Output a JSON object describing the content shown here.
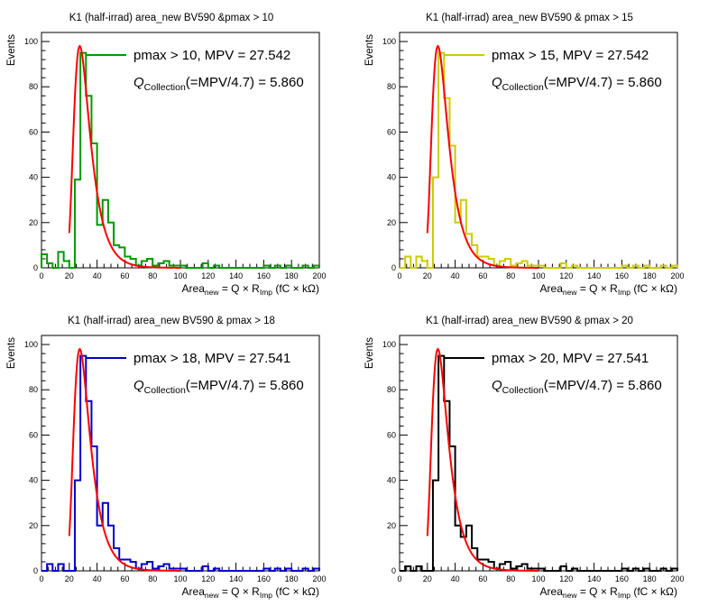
{
  "chart_data": [
    {
      "type": "histogram",
      "title": "K1 (half-irrad) area_new BV590 &pmax > 10",
      "xlabel": {
        "main": "Area",
        "sub": "new",
        "rest": " = Q × R",
        "sub2": "Imp",
        "tail": " (fC × kΩ)"
      },
      "ylabel": "Events",
      "xlim": [
        0,
        200
      ],
      "ylim": [
        0,
        104
      ],
      "xticks": [
        "0",
        "20",
        "40",
        "60",
        "80",
        "100",
        "120",
        "140",
        "160",
        "180",
        "200"
      ],
      "yticks": [
        "0",
        "20",
        "40",
        "60",
        "80",
        "100"
      ],
      "bin_width": 4,
      "legend": {
        "text": "pmax > 10, MPV = 27.542"
      },
      "annotation": {
        "q": "Q",
        "sub": "Collection",
        "rest": "(=MPV/4.7) = 5.860"
      },
      "series": [
        {
          "name": "pmax > 10",
          "color": "#009900",
          "values": [
            6,
            2,
            0,
            7,
            3,
            0,
            39,
            95,
            76,
            55,
            19,
            30,
            20,
            10,
            9,
            5,
            4,
            1,
            3,
            4,
            1,
            2,
            3,
            1,
            1,
            1,
            0,
            0,
            0,
            2,
            0,
            1,
            0,
            0,
            0,
            0,
            0,
            0,
            0,
            0,
            1,
            0,
            1,
            0,
            1,
            0,
            0,
            1,
            0,
            1
          ]
        },
        {
          "name": "Landau fit",
          "color": "#ff0000",
          "fit": true,
          "mpv": 27.542,
          "amplitude": 98,
          "x_range": [
            20,
            100
          ]
        }
      ]
    },
    {
      "type": "histogram",
      "title": "K1 (half-irrad) area_new BV590 & pmax > 15",
      "xlabel": {
        "main": "Area",
        "sub": "new",
        "rest": " = Q × R",
        "sub2": "Imp",
        "tail": " (fC × kΩ)"
      },
      "ylabel": "Events",
      "xlim": [
        0,
        200
      ],
      "ylim": [
        0,
        104
      ],
      "xticks": [
        "0",
        "20",
        "40",
        "60",
        "80",
        "100",
        "120",
        "140",
        "160",
        "180",
        "200"
      ],
      "yticks": [
        "0",
        "20",
        "40",
        "60",
        "80",
        "100"
      ],
      "bin_width": 4,
      "legend": {
        "text": "pmax > 15, MPV = 27.542"
      },
      "annotation": {
        "q": "Q",
        "sub": "Collection",
        "rest": "(=MPV/4.7) = 5.860"
      },
      "series": [
        {
          "name": "pmax > 15",
          "color": "#cccc00",
          "values": [
            0,
            5,
            0,
            5,
            3,
            0,
            40,
            95,
            75,
            54,
            20,
            30,
            15,
            10,
            5,
            5,
            4,
            1,
            3,
            4,
            1,
            2,
            3,
            1,
            1,
            1,
            0,
            0,
            0,
            2,
            0,
            1,
            0,
            0,
            0,
            0,
            0,
            0,
            0,
            0,
            1,
            0,
            1,
            0,
            1,
            0,
            0,
            1,
            0,
            1
          ]
        },
        {
          "name": "Landau fit",
          "color": "#ff0000",
          "fit": true,
          "mpv": 27.542,
          "amplitude": 98,
          "x_range": [
            20,
            100
          ]
        }
      ]
    },
    {
      "type": "histogram",
      "title": "K1 (half-irrad) area_new BV590 & pmax > 18",
      "xlabel": {
        "main": "Area",
        "sub": "new",
        "rest": " = Q × R",
        "sub2": "Imp",
        "tail": " (fC × kΩ)"
      },
      "ylabel": "Events",
      "xlim": [
        0,
        200
      ],
      "ylim": [
        0,
        104
      ],
      "xticks": [
        "0",
        "20",
        "40",
        "60",
        "80",
        "100",
        "120",
        "140",
        "160",
        "180",
        "200"
      ],
      "yticks": [
        "0",
        "20",
        "40",
        "60",
        "80",
        "100"
      ],
      "bin_width": 4,
      "legend": {
        "text": "pmax > 18, MPV = 27.541"
      },
      "annotation": {
        "q": "Q",
        "sub": "Collection",
        "rest": "(=MPV/4.7) = 5.860"
      },
      "series": [
        {
          "name": "pmax > 18",
          "color": "#0000cc",
          "values": [
            0,
            3,
            0,
            3,
            0,
            0,
            40,
            95,
            75,
            55,
            20,
            30,
            20,
            10,
            5,
            5,
            4,
            1,
            3,
            4,
            1,
            2,
            3,
            1,
            1,
            1,
            0,
            0,
            0,
            2,
            0,
            1,
            0,
            0,
            0,
            0,
            0,
            0,
            0,
            0,
            1,
            0,
            1,
            0,
            1,
            0,
            0,
            1,
            0,
            1
          ]
        },
        {
          "name": "Landau fit",
          "color": "#ff0000",
          "fit": true,
          "mpv": 27.541,
          "amplitude": 98,
          "x_range": [
            20,
            100
          ]
        }
      ]
    },
    {
      "type": "histogram",
      "title": "K1 (half-irrad) area_new BV590 & pmax > 20",
      "xlabel": {
        "main": "Area",
        "sub": "new",
        "rest": " = Q × R",
        "sub2": "Imp",
        "tail": " (fC × kΩ)"
      },
      "ylabel": "Events",
      "xlim": [
        0,
        200
      ],
      "ylim": [
        0,
        104
      ],
      "xticks": [
        "0",
        "20",
        "40",
        "60",
        "80",
        "100",
        "120",
        "140",
        "160",
        "180",
        "200"
      ],
      "yticks": [
        "0",
        "20",
        "40",
        "60",
        "80",
        "100"
      ],
      "bin_width": 4,
      "legend": {
        "text": "pmax > 20, MPV = 27.541"
      },
      "annotation": {
        "q": "Q",
        "sub": "Collection",
        "rest": "(=MPV/4.7) = 5.860"
      },
      "series": [
        {
          "name": "pmax > 20",
          "color": "#000000",
          "values": [
            0,
            2,
            0,
            2,
            0,
            0,
            40,
            95,
            75,
            55,
            20,
            15,
            20,
            10,
            5,
            5,
            4,
            1,
            3,
            4,
            1,
            2,
            3,
            1,
            1,
            1,
            0,
            0,
            0,
            2,
            0,
            1,
            0,
            0,
            0,
            0,
            0,
            0,
            0,
            0,
            1,
            0,
            1,
            0,
            1,
            0,
            0,
            1,
            0,
            1
          ]
        },
        {
          "name": "Landau fit",
          "color": "#ff0000",
          "fit": true,
          "mpv": 27.541,
          "amplitude": 98,
          "x_range": [
            20,
            100
          ]
        }
      ]
    }
  ]
}
